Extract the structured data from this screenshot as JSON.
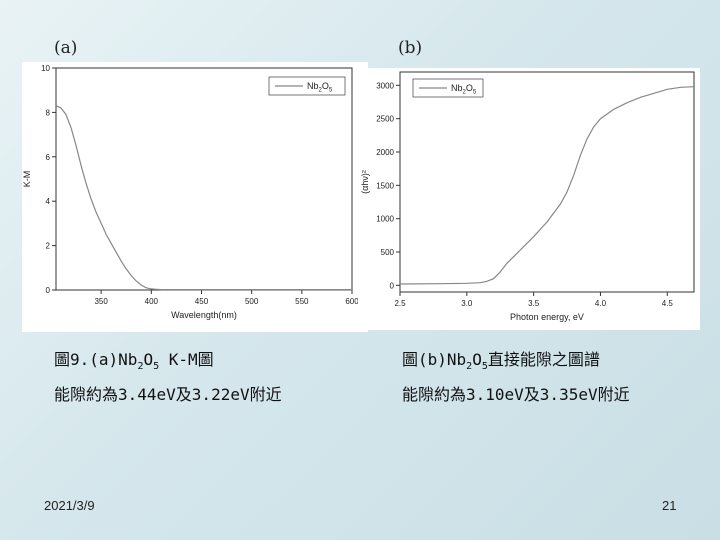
{
  "slide": {
    "label_a": "(a)",
    "label_b": "(b)",
    "date": "2021/3/9",
    "page": "21",
    "caption_left": {
      "line1_prefix": "圖9.(a)Nb",
      "line1_sub1": "2",
      "line1_mid": "O",
      "line1_sub2": "5",
      "line1_suffix": " K-M圖",
      "line2": "能隙約為3.44eV及3.22eV附近"
    },
    "caption_right": {
      "line1_prefix": "圖(b)Nb",
      "line1_sub1": "2",
      "line1_mid": "O",
      "line1_sub2": "5",
      "line1_suffix": "直接能隙之圖譜",
      "line2": "能隙約為3.10eV及3.35eV附近"
    }
  },
  "chart_data": [
    {
      "type": "line",
      "xlabel": "Wavelength(nm)",
      "ylabel": "K-M",
      "xlim": [
        305,
        600
      ],
      "ylim": [
        0,
        10
      ],
      "x_ticks": [
        350,
        400,
        450,
        500,
        550,
        600
      ],
      "y_ticks": [
        0,
        2,
        4,
        6,
        8,
        10
      ],
      "legend": {
        "label": "Nb2O5",
        "position": "top-right"
      },
      "series": [
        {
          "name": "Nb2O5",
          "color": "#888888",
          "x": [
            305,
            310,
            315,
            320,
            325,
            330,
            335,
            340,
            345,
            350,
            355,
            360,
            365,
            370,
            375,
            380,
            385,
            390,
            395,
            400,
            405,
            410,
            420,
            430,
            450,
            500,
            550,
            600
          ],
          "y": [
            8.3,
            8.2,
            7.9,
            7.3,
            6.5,
            5.6,
            4.8,
            4.1,
            3.5,
            3.0,
            2.5,
            2.1,
            1.7,
            1.3,
            0.95,
            0.65,
            0.4,
            0.22,
            0.1,
            0.05,
            0.03,
            0.02,
            0.02,
            0.02,
            0.02,
            0.02,
            0.02,
            0.02
          ]
        }
      ]
    },
    {
      "type": "line",
      "xlabel": "Photon energy, eV",
      "ylabel": "(αhν)²",
      "xlim": [
        2.5,
        4.7
      ],
      "ylim": [
        -100,
        3200
      ],
      "x_ticks": [
        2.5,
        3.0,
        3.5,
        4.0,
        4.5
      ],
      "y_ticks": [
        0,
        500,
        1000,
        1500,
        2000,
        2500,
        3000
      ],
      "legend": {
        "label": "Nb2O5",
        "position": "top-left"
      },
      "series": [
        {
          "name": "Nb2O5",
          "color": "#888888",
          "x": [
            2.5,
            2.8,
            3.0,
            3.1,
            3.15,
            3.2,
            3.25,
            3.3,
            3.35,
            3.4,
            3.5,
            3.6,
            3.7,
            3.75,
            3.8,
            3.85,
            3.9,
            3.95,
            4.0,
            4.1,
            4.2,
            4.3,
            4.4,
            4.5,
            4.6,
            4.7
          ],
          "y": [
            20,
            25,
            30,
            40,
            60,
            100,
            200,
            330,
            430,
            530,
            730,
            950,
            1220,
            1400,
            1650,
            1950,
            2200,
            2380,
            2500,
            2640,
            2740,
            2820,
            2880,
            2940,
            2970,
            2980
          ]
        }
      ]
    }
  ]
}
